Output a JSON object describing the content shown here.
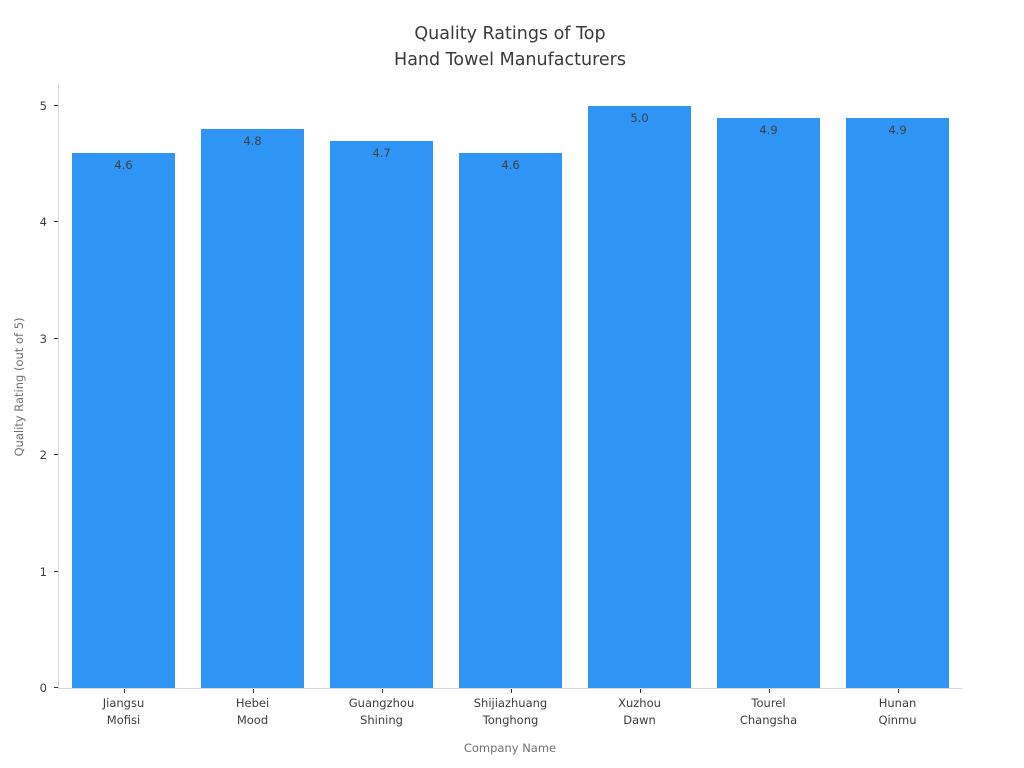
{
  "chart_data": {
    "type": "bar",
    "title": "Quality Ratings of Top\nHand Towel Manufacturers",
    "xlabel": "Company Name",
    "ylabel": "Quality Rating (out of 5)",
    "categories": [
      "Jiangsu\nMofisi",
      "Hebei\nMood",
      "Guangzhou\nShining",
      "Shijiazhuang\nTonghong",
      "Xuzhou\nDawn",
      "Tourel\nChangsha",
      "Hunan\nQinmu"
    ],
    "values": [
      4.6,
      4.8,
      4.7,
      4.6,
      5.0,
      4.9,
      4.9
    ],
    "value_label_format": "one_decimal",
    "yticks": [
      0,
      1,
      2,
      3,
      4,
      5
    ],
    "ylim": [
      0,
      5
    ],
    "bar_color": "#2e95f5",
    "grid": false,
    "legend": "none"
  }
}
